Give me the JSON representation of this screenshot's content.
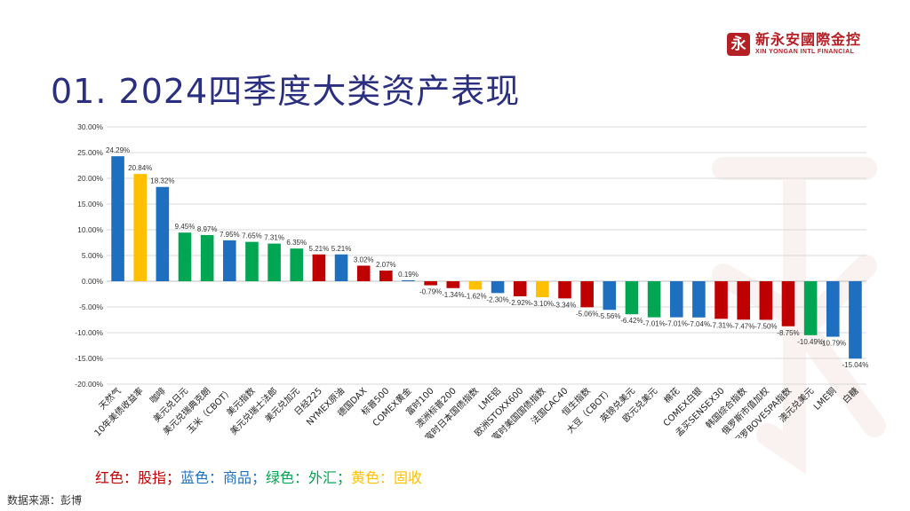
{
  "logo": {
    "mark": "永",
    "name_cn": "新永安國際金控",
    "name_en": "XIN YONGAN INTL FINANCIAL",
    "brand_color": "#b52025"
  },
  "title": "01. 2024四季度大类资产表现",
  "colors": {
    "equity": "#c00000",
    "commodity": "#1f6fc1",
    "fx": "#00a651",
    "fixed_income": "#ffc000",
    "title": "#2b2f80"
  },
  "legend": {
    "equity": "红色：股指；",
    "commodity": "蓝色：商品；",
    "fx": "绿色：外汇；",
    "fixed_income": "黄色：固收"
  },
  "source": "数据来源：彭博",
  "chart_data": {
    "type": "bar",
    "categories": [
      "天然气",
      "10年美债收益率",
      "咖啡",
      "美元兑日元",
      "美元兑瑞典克朗",
      "玉米（CBOT）",
      "美元指数",
      "美元兑瑞士法郎",
      "美元兑加元",
      "日经225",
      "NYMEX原油",
      "德国DAX",
      "标普500",
      "COMEX黄金",
      "富时100",
      "澳洲标普200",
      "富时日本国债指数",
      "LME铝",
      "欧洲STOXX600",
      "富时美国国债指数",
      "法国CAC40",
      "恒生指数",
      "大豆（CBOT）",
      "英镑兑美元",
      "欧元兑美元",
      "棉花",
      "COMEX白银",
      "孟买SENSEX30",
      "韩国综合指数",
      "俄罗斯市值加权",
      "圣保罗BOVESPA指数",
      "澳元兑美元",
      "LME铜",
      "白糖"
    ],
    "values": [
      24.29,
      20.84,
      18.32,
      9.45,
      8.97,
      7.95,
      7.65,
      7.31,
      6.35,
      5.21,
      5.21,
      3.02,
      2.07,
      0.19,
      -0.79,
      -1.34,
      -1.62,
      -2.3,
      -2.92,
      -3.1,
      -3.34,
      -5.06,
      -5.56,
      -6.42,
      -7.01,
      -7.01,
      -7.04,
      -7.31,
      -7.47,
      -7.5,
      -8.75,
      -10.49,
      -10.79,
      -15.04
    ],
    "labels": [
      "24.29%",
      "20.84%",
      "18.32%",
      "9.45%",
      "8.97%",
      "7.95%",
      "7.65%",
      "7.31%",
      "6.35%",
      "5.21%",
      "5.21%",
      "3.02%",
      "2.07%",
      "0.19%",
      "-0.79%",
      "-1.34%",
      "-1.62%",
      "-2.30%",
      "-2.92%",
      "-3.10%",
      "-3.34%",
      "-5.06%",
      "-5.56%",
      "-6.42%",
      "-7.01%",
      "-7.01%",
      "-7.04%",
      "-7.31%",
      "-7.47%",
      "-7.50%",
      "-8.75%",
      "-10.49%",
      "-10.79%",
      "-15.04%"
    ],
    "groups": [
      "commodity",
      "fixed_income",
      "commodity",
      "fx",
      "fx",
      "commodity",
      "fx",
      "fx",
      "fx",
      "equity",
      "commodity",
      "equity",
      "equity",
      "commodity",
      "equity",
      "equity",
      "fixed_income",
      "commodity",
      "equity",
      "fixed_income",
      "equity",
      "equity",
      "commodity",
      "fx",
      "fx",
      "commodity",
      "commodity",
      "equity",
      "equity",
      "equity",
      "equity",
      "fx",
      "commodity",
      "commodity"
    ],
    "ylim": [
      -20,
      30
    ],
    "yticks": [
      -20,
      -15,
      -10,
      -5,
      0,
      5,
      10,
      15,
      20,
      25,
      30
    ],
    "ytick_labels": [
      "-20.00%",
      "-15.00%",
      "-10.00%",
      "-5.00%",
      "0.00%",
      "5.00%",
      "10.00%",
      "15.00%",
      "20.00%",
      "25.00%",
      "30.00%"
    ],
    "grid": true
  }
}
